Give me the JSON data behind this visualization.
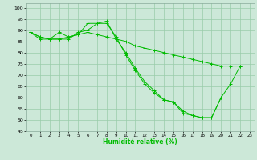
{
  "xlabel": "Humidité relative (%)",
  "bg_color": "#cce8d8",
  "grid_color": "#99ccaa",
  "line_color": "#00bb00",
  "xlim": [
    -0.5,
    23.5
  ],
  "ylim": [
    45,
    102
  ],
  "yticks": [
    45,
    50,
    55,
    60,
    65,
    70,
    75,
    80,
    85,
    90,
    95,
    100
  ],
  "xticks": [
    0,
    1,
    2,
    3,
    4,
    5,
    6,
    7,
    8,
    9,
    10,
    11,
    12,
    13,
    14,
    15,
    16,
    17,
    18,
    19,
    20,
    21,
    22,
    23
  ],
  "line1": [
    89,
    87,
    86,
    89,
    87,
    88,
    93,
    93,
    93,
    87,
    79,
    72,
    66,
    62,
    59,
    58,
    53,
    52,
    51,
    51,
    60,
    66,
    74,
    null
  ],
  "line2": [
    89,
    87,
    86,
    86,
    86,
    89,
    90,
    93,
    94,
    86,
    80,
    73,
    67,
    63,
    59,
    58,
    54,
    52,
    51,
    51,
    60,
    null,
    null,
    null
  ],
  "line3": [
    89,
    86,
    86,
    86,
    87,
    88,
    89,
    88,
    87,
    86,
    85,
    83,
    82,
    81,
    80,
    79,
    78,
    77,
    76,
    75,
    74,
    74,
    74,
    null
  ]
}
